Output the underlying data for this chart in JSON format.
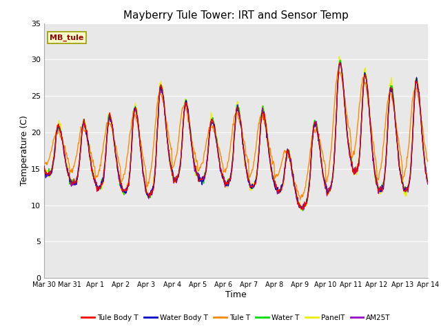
{
  "title": "Mayberry Tule Tower: IRT and Sensor Temp",
  "xlabel": "Time",
  "ylabel": "Temperature (C)",
  "ylim": [
    0,
    35
  ],
  "yticks": [
    0,
    5,
    10,
    15,
    20,
    25,
    30,
    35
  ],
  "date_labels": [
    "Mar 30",
    "Mar 31",
    "Apr 1",
    "Apr 2",
    "Apr 3",
    "Apr 4",
    "Apr 5",
    "Apr 6",
    "Apr 7",
    "Apr 8",
    "Apr 9",
    "Apr 10",
    "Apr 11",
    "Apr 12",
    "Apr 13",
    "Apr 14"
  ],
  "series_colors": {
    "Tule Body T": "#ff0000",
    "Water Body T": "#0000cc",
    "Tule T": "#ff8800",
    "Water T": "#00dd00",
    "PanelT": "#eeee00",
    "AM25T": "#9900cc"
  },
  "legend_label": "MB_tule",
  "fig_bg": "#ffffff",
  "plot_bg": "#e8e8e8",
  "grid_color": "#ffffff",
  "title_fontsize": 11,
  "axis_fontsize": 9,
  "tick_fontsize": 8,
  "n_days": 15,
  "n_points": 720
}
